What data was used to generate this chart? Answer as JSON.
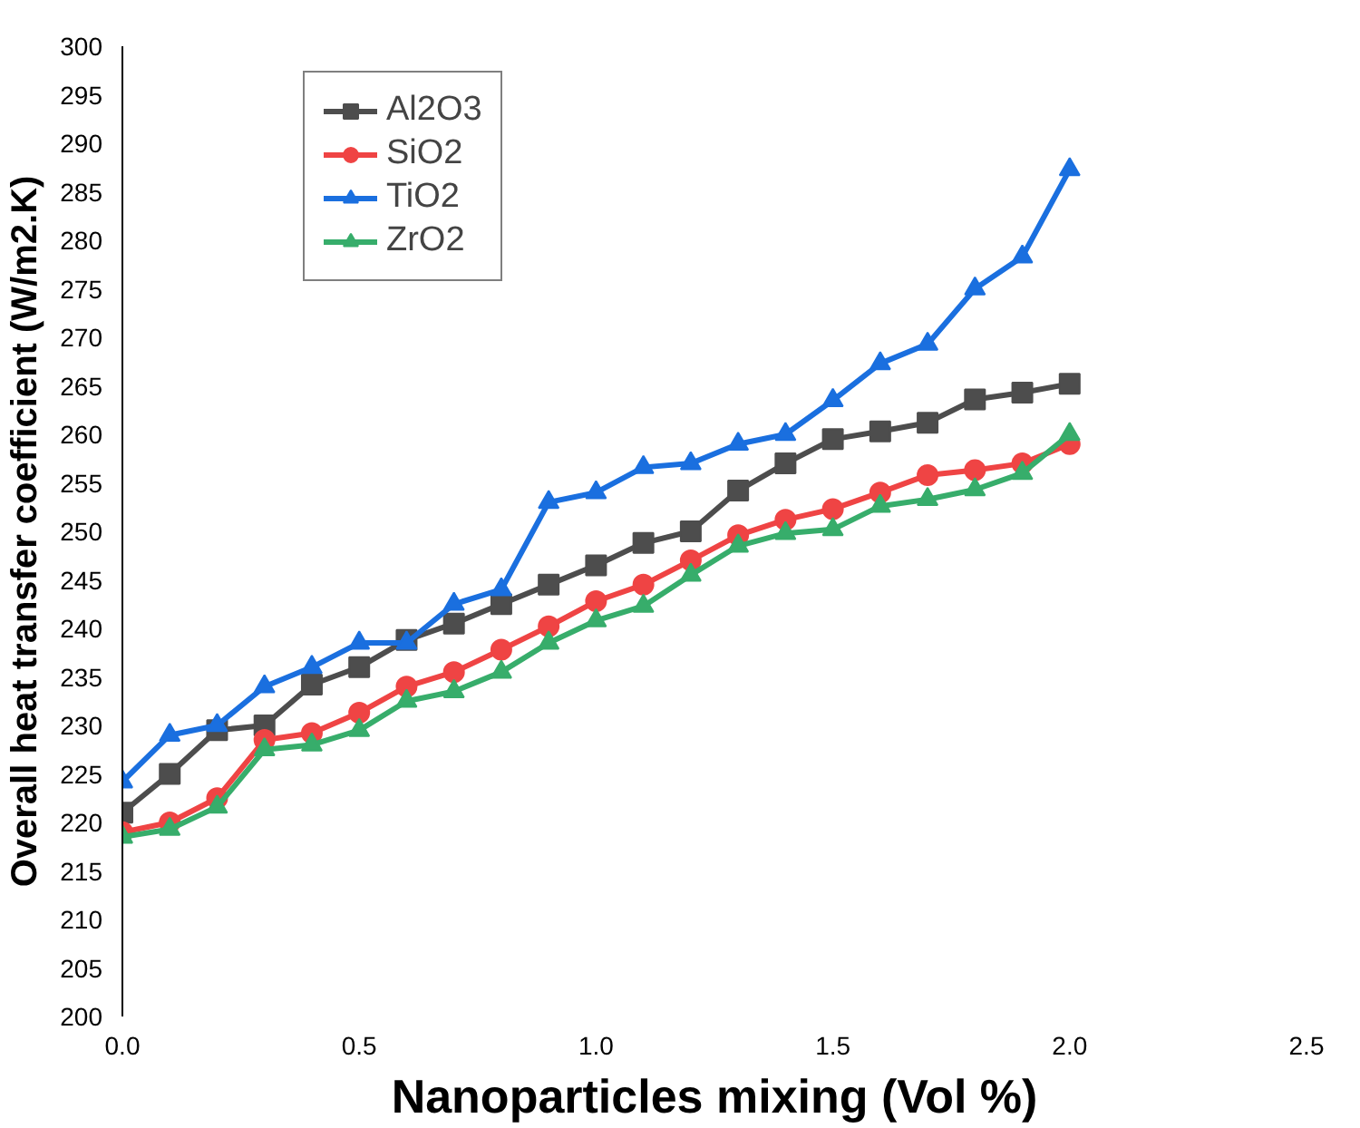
{
  "chart_data": {
    "type": "line",
    "xlabel": "Nanoparticles mixing (Vol %)",
    "ylabel": "Overall heat transfer coefficient (W/m2.K)",
    "x": [
      0.0,
      0.1,
      0.2,
      0.3,
      0.4,
      0.5,
      0.6,
      0.7,
      0.8,
      0.9,
      1.0,
      1.1,
      1.2,
      1.3,
      1.4,
      1.5,
      1.6,
      1.7,
      1.8,
      1.9,
      2.0
    ],
    "series": [
      {
        "name": "Al2O3",
        "color": "#4d4d4d",
        "marker": "square",
        "values": [
          221,
          225,
          229.5,
          230,
          234.2,
          236,
          238.8,
          240.5,
          242.5,
          244.5,
          246.5,
          248.8,
          250,
          254.2,
          257,
          259.5,
          260.3,
          261.2,
          263.6,
          264.3,
          265.2
        ]
      },
      {
        "name": "SiO2",
        "color": "#ef4444",
        "marker": "circle",
        "values": [
          219,
          220,
          222.5,
          228.5,
          229.2,
          231.3,
          234,
          235.5,
          237.8,
          240.2,
          242.8,
          244.5,
          247,
          249.6,
          251.2,
          252.3,
          254,
          255.8,
          256.3,
          257,
          259
        ]
      },
      {
        "name": "TiO2",
        "color": "#1a6fdf",
        "marker": "triangle",
        "values": [
          224.2,
          229,
          230,
          234,
          236,
          238.5,
          238.5,
          242.5,
          244,
          253,
          254,
          256.6,
          257,
          259,
          260,
          263.5,
          267.3,
          269.3,
          275,
          278.3,
          287.3
        ]
      },
      {
        "name": "ZrO2",
        "color": "#37ad6b",
        "marker": "triangle",
        "values": [
          218.5,
          219.3,
          221.6,
          227.5,
          228,
          229.5,
          232.5,
          233.5,
          235.5,
          238.5,
          240.8,
          242.3,
          245.5,
          248.5,
          249.8,
          250.2,
          252.6,
          253.3,
          254.3,
          256,
          260
        ]
      }
    ],
    "xlim": [
      0,
      2.5
    ],
    "ylim": [
      200,
      300
    ],
    "xticks": [
      {
        "value": 0,
        "label": "0.0"
      },
      {
        "value": 0.5,
        "label": "0.5"
      },
      {
        "value": 1,
        "label": "1.0"
      },
      {
        "value": 1.5,
        "label": "1.5"
      },
      {
        "value": 2,
        "label": "2.0"
      },
      {
        "value": 2.5,
        "label": "2.5"
      }
    ],
    "yticks": [
      200,
      205,
      210,
      215,
      220,
      225,
      230,
      235,
      240,
      245,
      250,
      255,
      260,
      265,
      270,
      275,
      280,
      285,
      290,
      295,
      300
    ],
    "grid": false,
    "legend": "top left",
    "line_style": "solid"
  }
}
